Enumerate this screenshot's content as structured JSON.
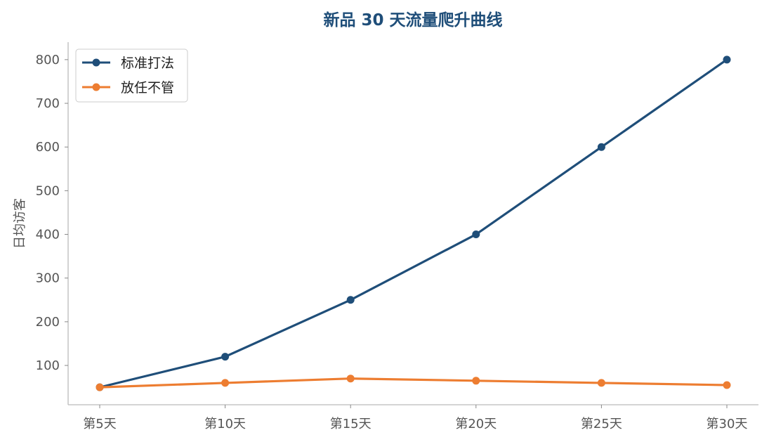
{
  "chart_data": {
    "type": "line",
    "title": "新品 30 天流量爬升曲线",
    "xlabel": "",
    "ylabel": "日均访客",
    "categories": [
      "第5天",
      "第10天",
      "第15天",
      "第20天",
      "第25天",
      "第30天"
    ],
    "yticks": [
      100,
      200,
      300,
      400,
      500,
      600,
      700,
      800
    ],
    "ylim": [
      10,
      840
    ],
    "grid": false,
    "legend_position": "top-left",
    "series": [
      {
        "name": "标准打法",
        "color": "#1f4e79",
        "values": [
          50,
          120,
          250,
          400,
          600,
          800
        ]
      },
      {
        "name": "放任不管",
        "color": "#ed7d31",
        "values": [
          50,
          60,
          70,
          65,
          60,
          55
        ]
      }
    ]
  }
}
